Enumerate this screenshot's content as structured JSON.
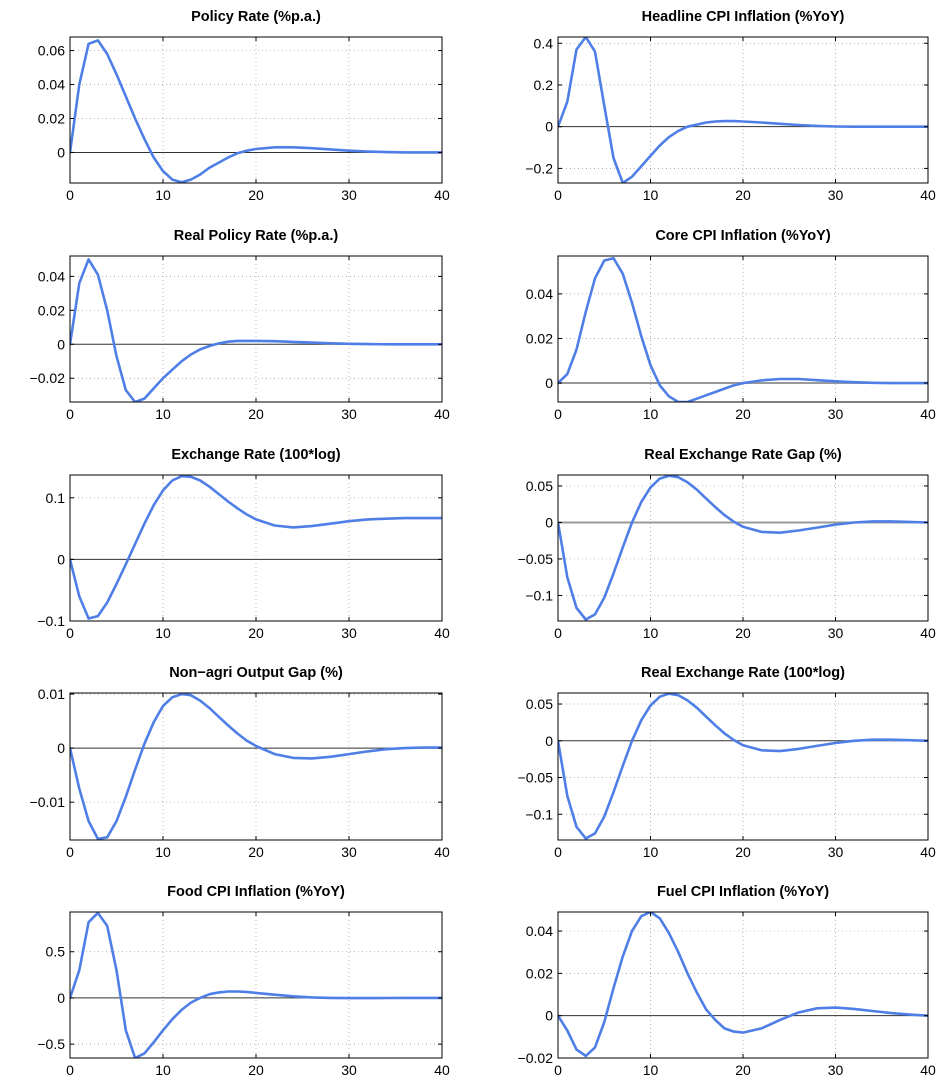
{
  "colors": {
    "series": "#4f7fe6",
    "axis": "#000000",
    "zero_line": "#333333",
    "zero_line_grey": "#999999"
  },
  "chart_data": [
    {
      "type": "line",
      "title": "Policy Rate (%p.a.)",
      "xlim": [
        0,
        40
      ],
      "ylim": [
        -0.018,
        0.068
      ],
      "xticks": [
        0,
        10,
        20,
        30,
        40
      ],
      "xtick_labels": [
        "0",
        "10",
        "20",
        "30",
        "40"
      ],
      "yticks": [
        0,
        0.02,
        0.04,
        0.06
      ],
      "ytick_labels": [
        "0",
        "0.02",
        "0.04",
        "0.06"
      ],
      "zero_line": "dark",
      "grid": true,
      "x": [
        0,
        1,
        2,
        3,
        4,
        5,
        6,
        7,
        8,
        9,
        10,
        11,
        12,
        13,
        14,
        15,
        16,
        17,
        18,
        19,
        20,
        22,
        24,
        26,
        28,
        30,
        32,
        34,
        36,
        38,
        40
      ],
      "y": [
        0,
        0.04,
        0.064,
        0.066,
        0.058,
        0.046,
        0.033,
        0.02,
        0.008,
        -0.003,
        -0.011,
        -0.016,
        -0.0175,
        -0.016,
        -0.013,
        -0.009,
        -0.006,
        -0.003,
        -0.0005,
        0.001,
        0.002,
        0.003,
        0.003,
        0.0025,
        0.0018,
        0.001,
        0.0005,
        0.0002,
        0,
        0,
        0
      ]
    },
    {
      "type": "line",
      "title": "Headline CPI Inflation (%YoY)",
      "xlim": [
        0,
        40
      ],
      "ylim": [
        -0.27,
        0.43
      ],
      "xticks": [
        0,
        10,
        20,
        30,
        40
      ],
      "xtick_labels": [
        "0",
        "10",
        "20",
        "30",
        "40"
      ],
      "yticks": [
        -0.2,
        0,
        0.2,
        0.4
      ],
      "ytick_labels": [
        "−0.2",
        "0",
        "0.2",
        "0.4"
      ],
      "zero_line": "dark",
      "grid": true,
      "x": [
        0,
        1,
        2,
        3,
        4,
        5,
        6,
        7,
        8,
        9,
        10,
        11,
        12,
        13,
        14,
        15,
        16,
        17,
        18,
        19,
        20,
        22,
        24,
        26,
        28,
        30,
        32,
        34,
        36,
        38,
        40
      ],
      "y": [
        0,
        0.12,
        0.37,
        0.43,
        0.36,
        0.1,
        -0.15,
        -0.27,
        -0.24,
        -0.19,
        -0.14,
        -0.09,
        -0.05,
        -0.02,
        0.0,
        0.01,
        0.02,
        0.025,
        0.027,
        0.027,
        0.025,
        0.02,
        0.014,
        0.008,
        0.004,
        0.001,
        0,
        0,
        0,
        0,
        0
      ]
    },
    {
      "type": "line",
      "title": "Real Policy Rate (%p.a.)",
      "xlim": [
        0,
        40
      ],
      "ylim": [
        -0.034,
        0.052
      ],
      "xticks": [
        0,
        10,
        20,
        30,
        40
      ],
      "xtick_labels": [
        "0",
        "10",
        "20",
        "30",
        "40"
      ],
      "yticks": [
        -0.02,
        0,
        0.02,
        0.04
      ],
      "ytick_labels": [
        "−0.02",
        "0",
        "0.02",
        "0.04"
      ],
      "zero_line": "dark",
      "grid": true,
      "x": [
        0,
        1,
        2,
        3,
        4,
        5,
        6,
        7,
        8,
        9,
        10,
        11,
        12,
        13,
        14,
        15,
        16,
        17,
        18,
        19,
        20,
        22,
        24,
        26,
        28,
        30,
        32,
        34,
        36,
        38,
        40
      ],
      "y": [
        0,
        0.036,
        0.05,
        0.041,
        0.02,
        -0.007,
        -0.027,
        -0.034,
        -0.032,
        -0.026,
        -0.02,
        -0.015,
        -0.01,
        -0.006,
        -0.003,
        -0.001,
        0.0005,
        0.0015,
        0.002,
        0.002,
        0.002,
        0.0018,
        0.0014,
        0.001,
        0.0006,
        0.0003,
        0.0001,
        0,
        0,
        0,
        0
      ]
    },
    {
      "type": "line",
      "title": "Core CPI Inflation (%YoY)",
      "xlim": [
        0,
        40
      ],
      "ylim": [
        -0.0085,
        0.057
      ],
      "xticks": [
        0,
        10,
        20,
        30,
        40
      ],
      "xtick_labels": [
        "0",
        "10",
        "20",
        "30",
        "40"
      ],
      "yticks": [
        0,
        0.02,
        0.04
      ],
      "ytick_labels": [
        "0",
        "0.02",
        "0.04"
      ],
      "zero_line": "grey",
      "grid": true,
      "x": [
        0,
        1,
        2,
        3,
        4,
        5,
        6,
        7,
        8,
        9,
        10,
        11,
        12,
        13,
        14,
        15,
        16,
        17,
        18,
        19,
        20,
        22,
        24,
        26,
        28,
        30,
        32,
        34,
        36,
        38,
        40
      ],
      "y": [
        0,
        0.004,
        0.015,
        0.032,
        0.047,
        0.055,
        0.056,
        0.049,
        0.036,
        0.021,
        0.008,
        -0.001,
        -0.006,
        -0.0085,
        -0.0085,
        -0.007,
        -0.0055,
        -0.004,
        -0.0025,
        -0.001,
        0.0,
        0.0012,
        0.0018,
        0.0018,
        0.0013,
        0.0008,
        0.0004,
        0.0001,
        0,
        0,
        0
      ]
    },
    {
      "type": "line",
      "title": "Exchange Rate (100*log)",
      "xlim": [
        0,
        40
      ],
      "ylim": [
        -0.1,
        0.137
      ],
      "xticks": [
        0,
        10,
        20,
        30,
        40
      ],
      "xtick_labels": [
        "0",
        "10",
        "20",
        "30",
        "40"
      ],
      "yticks": [
        -0.1,
        0,
        0.1
      ],
      "ytick_labels": [
        "−0.1",
        "0",
        "0.1"
      ],
      "zero_line": "dark",
      "grid": true,
      "x": [
        0,
        1,
        2,
        3,
        4,
        5,
        6,
        7,
        8,
        9,
        10,
        11,
        12,
        13,
        14,
        15,
        16,
        17,
        18,
        19,
        20,
        22,
        24,
        26,
        28,
        30,
        32,
        34,
        36,
        38,
        40
      ],
      "y": [
        0,
        -0.06,
        -0.096,
        -0.092,
        -0.07,
        -0.04,
        -0.008,
        0.025,
        0.058,
        0.088,
        0.112,
        0.128,
        0.135,
        0.134,
        0.128,
        0.118,
        0.106,
        0.094,
        0.083,
        0.073,
        0.065,
        0.055,
        0.052,
        0.054,
        0.058,
        0.062,
        0.065,
        0.066,
        0.067,
        0.067,
        0.067
      ]
    },
    {
      "type": "line",
      "title": "Real Exchange Rate Gap (%)",
      "xlim": [
        0,
        40
      ],
      "ylim": [
        -0.135,
        0.065
      ],
      "xticks": [
        0,
        10,
        20,
        30,
        40
      ],
      "xtick_labels": [
        "0",
        "10",
        "20",
        "30",
        "40"
      ],
      "yticks": [
        -0.1,
        -0.05,
        0,
        0.05
      ],
      "ytick_labels": [
        "−0.1",
        "−0.05",
        "0",
        "0.05"
      ],
      "zero_line": "grey",
      "grid": true,
      "x": [
        0,
        1,
        2,
        3,
        4,
        5,
        6,
        7,
        8,
        9,
        10,
        11,
        12,
        13,
        14,
        15,
        16,
        17,
        18,
        19,
        20,
        22,
        24,
        26,
        28,
        30,
        32,
        34,
        36,
        38,
        40
      ],
      "y": [
        0,
        -0.075,
        -0.117,
        -0.133,
        -0.126,
        -0.103,
        -0.07,
        -0.034,
        0.0,
        0.028,
        0.048,
        0.06,
        0.064,
        0.062,
        0.055,
        0.045,
        0.033,
        0.021,
        0.01,
        0.001,
        -0.006,
        -0.013,
        -0.014,
        -0.011,
        -0.007,
        -0.003,
        0,
        0.0015,
        0.0015,
        0.0008,
        0
      ]
    },
    {
      "type": "line",
      "title": "Non−agri Output Gap (%)",
      "xlim": [
        0,
        40
      ],
      "ylim": [
        -0.017,
        0.0102
      ],
      "xticks": [
        0,
        10,
        20,
        30,
        40
      ],
      "xtick_labels": [
        "0",
        "10",
        "20",
        "30",
        "40"
      ],
      "yticks": [
        -0.01,
        0,
        0.01
      ],
      "ytick_labels": [
        "−0.01",
        "0",
        "0.01"
      ],
      "zero_line": "dark",
      "grid": true,
      "x": [
        0,
        1,
        2,
        3,
        4,
        5,
        6,
        7,
        8,
        9,
        10,
        11,
        12,
        13,
        14,
        15,
        16,
        17,
        18,
        19,
        20,
        22,
        24,
        26,
        28,
        30,
        32,
        34,
        36,
        38,
        40
      ],
      "y": [
        0,
        -0.0075,
        -0.0135,
        -0.0168,
        -0.0165,
        -0.0135,
        -0.009,
        -0.004,
        0.0008,
        0.0048,
        0.0078,
        0.0094,
        0.01,
        0.0098,
        0.0088,
        0.0074,
        0.0058,
        0.0042,
        0.0027,
        0.0014,
        0.0004,
        -0.0011,
        -0.0018,
        -0.0019,
        -0.0016,
        -0.0011,
        -0.0006,
        -0.0002,
        0,
        0.0001,
        0.0001
      ]
    },
    {
      "type": "line",
      "title": "Real Exchange Rate (100*log)",
      "xlim": [
        0,
        40
      ],
      "ylim": [
        -0.135,
        0.065
      ],
      "xticks": [
        0,
        10,
        20,
        30,
        40
      ],
      "xtick_labels": [
        "0",
        "10",
        "20",
        "30",
        "40"
      ],
      "yticks": [
        -0.1,
        -0.05,
        0,
        0.05
      ],
      "ytick_labels": [
        "−0.1",
        "−0.05",
        "0",
        "0.05"
      ],
      "zero_line": "dark",
      "grid": true,
      "x": [
        0,
        1,
        2,
        3,
        4,
        5,
        6,
        7,
        8,
        9,
        10,
        11,
        12,
        13,
        14,
        15,
        16,
        17,
        18,
        19,
        20,
        22,
        24,
        26,
        28,
        30,
        32,
        34,
        36,
        38,
        40
      ],
      "y": [
        0,
        -0.075,
        -0.117,
        -0.133,
        -0.126,
        -0.103,
        -0.07,
        -0.034,
        0.0,
        0.028,
        0.048,
        0.06,
        0.064,
        0.062,
        0.055,
        0.045,
        0.033,
        0.021,
        0.01,
        0.001,
        -0.006,
        -0.013,
        -0.014,
        -0.011,
        -0.007,
        -0.003,
        0,
        0.0015,
        0.0015,
        0.0008,
        0
      ]
    },
    {
      "type": "line",
      "title": "Food CPI Inflation (%YoY)",
      "xlim": [
        0,
        40
      ],
      "ylim": [
        -0.65,
        0.93
      ],
      "xticks": [
        0,
        10,
        20,
        30,
        40
      ],
      "xtick_labels": [
        "0",
        "10",
        "20",
        "30",
        "40"
      ],
      "yticks": [
        -0.5,
        0,
        0.5
      ],
      "ytick_labels": [
        "−0.5",
        "0",
        "0.5"
      ],
      "zero_line": "dark",
      "grid": true,
      "x": [
        0,
        1,
        2,
        3,
        4,
        5,
        6,
        7,
        8,
        9,
        10,
        11,
        12,
        13,
        14,
        15,
        16,
        17,
        18,
        19,
        20,
        22,
        24,
        26,
        28,
        30,
        32,
        34,
        36,
        38,
        40
      ],
      "y": [
        0,
        0.3,
        0.82,
        0.92,
        0.78,
        0.3,
        -0.35,
        -0.65,
        -0.6,
        -0.48,
        -0.35,
        -0.23,
        -0.13,
        -0.05,
        0.0,
        0.04,
        0.06,
        0.07,
        0.07,
        0.065,
        0.055,
        0.035,
        0.018,
        0.006,
        0,
        -0.002,
        -0.002,
        -0.001,
        0,
        0,
        0
      ]
    },
    {
      "type": "line",
      "title": "Fuel CPI Inflation (%YoY)",
      "xlim": [
        0,
        40
      ],
      "ylim": [
        -0.02,
        0.049
      ],
      "xticks": [
        0,
        10,
        20,
        30,
        40
      ],
      "xtick_labels": [
        "0",
        "10",
        "20",
        "30",
        "40"
      ],
      "yticks": [
        -0.02,
        0,
        0.02,
        0.04
      ],
      "ytick_labels": [
        "−0.02",
        "0",
        "0.02",
        "0.04"
      ],
      "zero_line": "dark",
      "grid": true,
      "x": [
        0,
        1,
        2,
        3,
        4,
        5,
        6,
        7,
        8,
        9,
        10,
        11,
        12,
        13,
        14,
        15,
        16,
        17,
        18,
        19,
        20,
        22,
        24,
        26,
        28,
        30,
        32,
        34,
        36,
        38,
        40
      ],
      "y": [
        0,
        -0.007,
        -0.016,
        -0.019,
        -0.015,
        -0.003,
        0.013,
        0.028,
        0.04,
        0.047,
        0.049,
        0.046,
        0.039,
        0.03,
        0.02,
        0.011,
        0.003,
        -0.002,
        -0.006,
        -0.0075,
        -0.008,
        -0.006,
        -0.002,
        0.0015,
        0.0035,
        0.0038,
        0.0032,
        0.0022,
        0.0012,
        0.0005,
        0
      ]
    }
  ]
}
